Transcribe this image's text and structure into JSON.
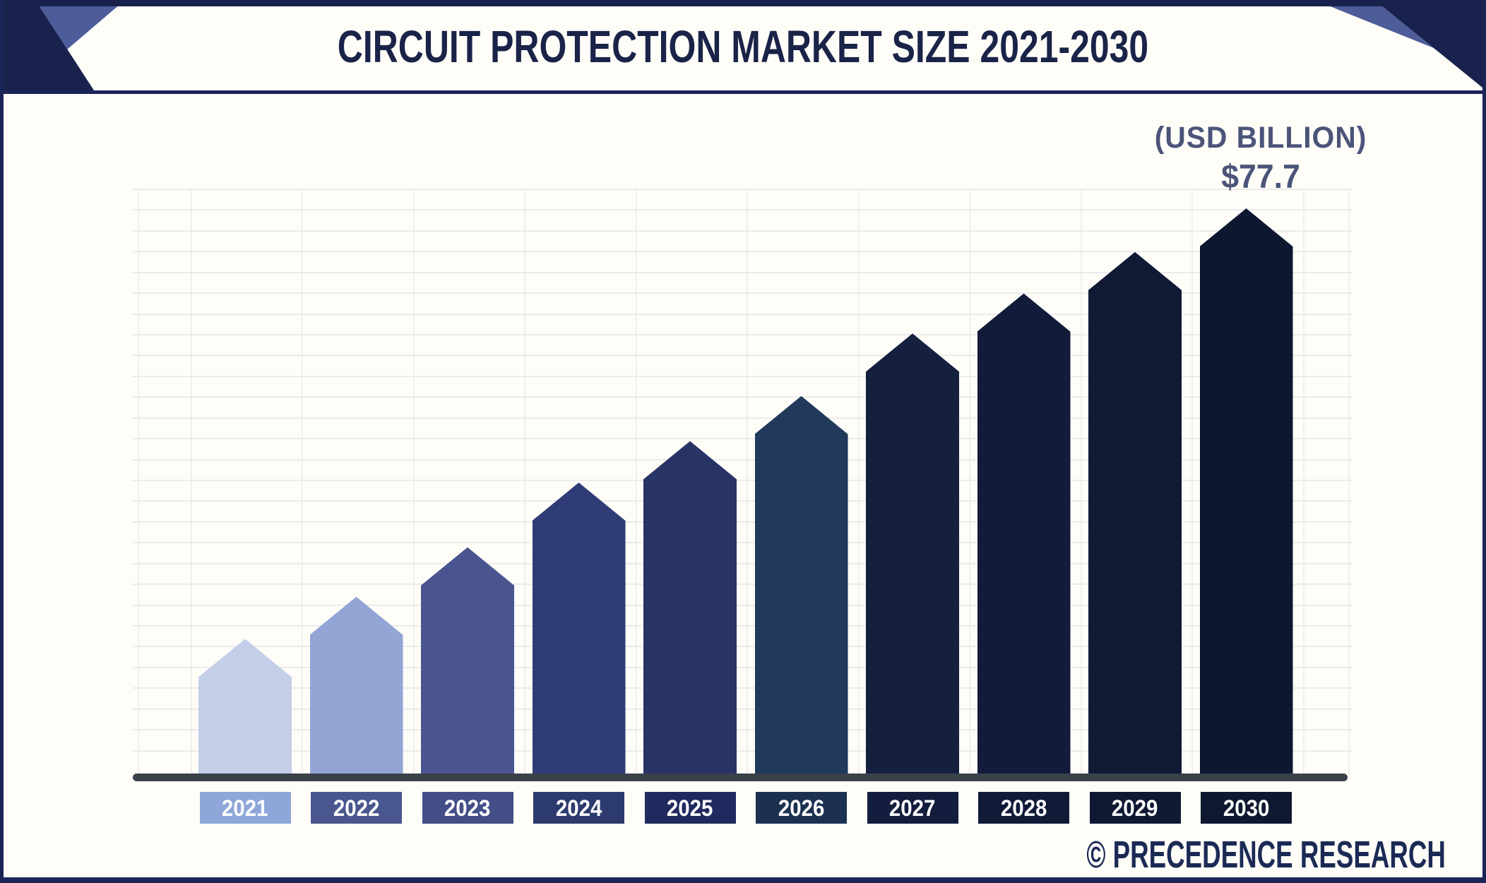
{
  "header": {
    "title": "CIRCUIT PROTECTION MARKET SIZE 2021-2030"
  },
  "annotation": {
    "unit_label": "(USD BILLION)",
    "value_label": "$77.7"
  },
  "footer": {
    "brand": "© PRECEDENCE RESEARCH"
  },
  "colors": {
    "navy": "#19224d",
    "corner_slate": "#4e5d99",
    "title_text": "#1a2348",
    "annotation_text": "#4b5479",
    "brand_text": "#1b2a55",
    "baseline": "#3a414b",
    "header_bg": "#fffdf8",
    "chart_bg": "#fefdf8",
    "gridline": "#ebebec"
  },
  "chart_data": {
    "type": "bar",
    "title": "Circuit Protection Market Size 2021-2030",
    "unit": "USD Billion",
    "categories": [
      "2021",
      "2022",
      "2023",
      "2024",
      "2025",
      "2026",
      "2027",
      "2028",
      "2029",
      "2030"
    ],
    "values": [
      18.5,
      24.3,
      31.1,
      40.0,
      45.7,
      51.9,
      60.5,
      66.0,
      71.7,
      77.7
    ],
    "labeled_points": [
      {
        "category": "2030",
        "label": "$77.7"
      }
    ],
    "xlabel": "",
    "ylabel": "(USD BILLION)",
    "ylim": [
      0,
      80
    ],
    "grid": "horizontal-and-vertical, unlabeled",
    "legend": "none",
    "bar_shape": "pointed-top pentagon",
    "bar_colors": [
      "#c4cee9",
      "#93a5d5",
      "#4a5590",
      "#303c75",
      "#293466",
      "#21395a",
      "#15203f",
      "#121c3a",
      "#101a35",
      "#0d1730"
    ],
    "label_box_colors": [
      "#8ea6d8",
      "#4a568e",
      "#434e87",
      "#2d3a6e",
      "#212a5e",
      "#1c3150",
      "#131d3d",
      "#111b38",
      "#0f1933",
      "#0e1830"
    ]
  }
}
